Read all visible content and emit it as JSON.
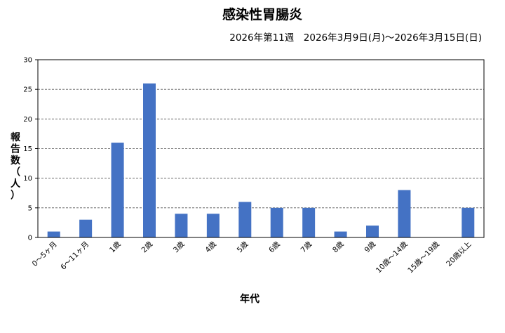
{
  "chart_data": {
    "type": "bar",
    "title": "感染性胃腸炎",
    "subtitle": "2026年第11週　2026年3月9日(月)～2026年3月15日(日)",
    "xlabel": "年代",
    "ylabel": [
      "報",
      "告",
      "数",
      "（",
      "人",
      "）"
    ],
    "categories": [
      "0～5ヶ月",
      "6～11ヶ月",
      "1歳",
      "2歳",
      "3歳",
      "4歳",
      "5歳",
      "6歳",
      "7歳",
      "8歳",
      "9歳",
      "10歳～14歳",
      "15歳～19歳",
      "20歳以上"
    ],
    "values": [
      1,
      3,
      16,
      26,
      4,
      4,
      6,
      5,
      5,
      1,
      2,
      8,
      0,
      5
    ],
    "ylim": [
      0,
      30
    ],
    "yticks": [
      0,
      5,
      10,
      15,
      20,
      25,
      30
    ],
    "grid": "horizontal dashed",
    "bar_color": "#4472c4"
  }
}
